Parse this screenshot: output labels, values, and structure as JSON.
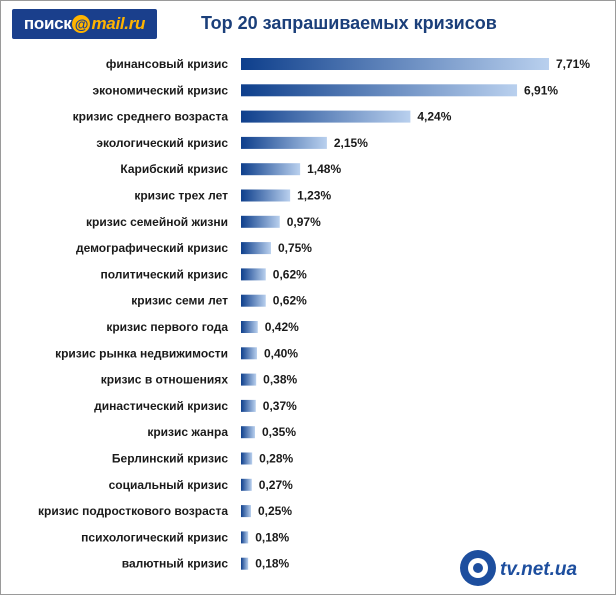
{
  "header": {
    "logo_main": "поиск",
    "logo_at": "@",
    "logo_tail": "mail.ru",
    "title": "Top 20 запрашиваемых кризисов"
  },
  "watermark": {
    "text": "tv.net.ua"
  },
  "colors": {
    "bar_dark": "#0e3f8c",
    "bar_light": "#b9d0ee",
    "title": "#1b3f7a",
    "logo_bg": "#1a3f8c",
    "logo_accent": "#ffb400"
  },
  "chart_data": {
    "type": "bar",
    "orientation": "horizontal",
    "title": "Top 20 запрашиваемых кризисов",
    "xlabel": "",
    "ylabel": "",
    "value_suffix": "%",
    "grid": false,
    "legend": "none",
    "categories": [
      "финансовый кризис",
      "экономический кризис",
      "кризис среднего возраста",
      "экологический кризис",
      "Карибский кризис",
      "кризис трех лет",
      "кризис семейной жизни",
      "демографический кризис",
      "политический кризис",
      "кризис семи лет",
      "кризис первого года",
      "кризис рынка недвижимости",
      "кризис в отношениях",
      "династический кризис",
      "кризис жанра",
      "Берлинский кризис",
      "социальный кризис",
      "кризис подросткового возраста",
      "психологический кризис",
      "валютный кризис"
    ],
    "values": [
      7.71,
      6.91,
      4.24,
      2.15,
      1.48,
      1.23,
      0.97,
      0.75,
      0.62,
      0.62,
      0.42,
      0.4,
      0.38,
      0.37,
      0.35,
      0.28,
      0.27,
      0.25,
      0.18,
      0.18
    ],
    "value_labels": [
      "7,71%",
      "6,91%",
      "4,24%",
      "2,15%",
      "1,48%",
      "1,23%",
      "0,97%",
      "0,75%",
      "0,62%",
      "0,62%",
      "0,42%",
      "0,40%",
      "0,38%",
      "0,37%",
      "0,35%",
      "0,28%",
      "0,27%",
      "0,25%",
      "0,18%",
      "0,18%"
    ],
    "xlim": [
      0,
      7.71
    ]
  }
}
